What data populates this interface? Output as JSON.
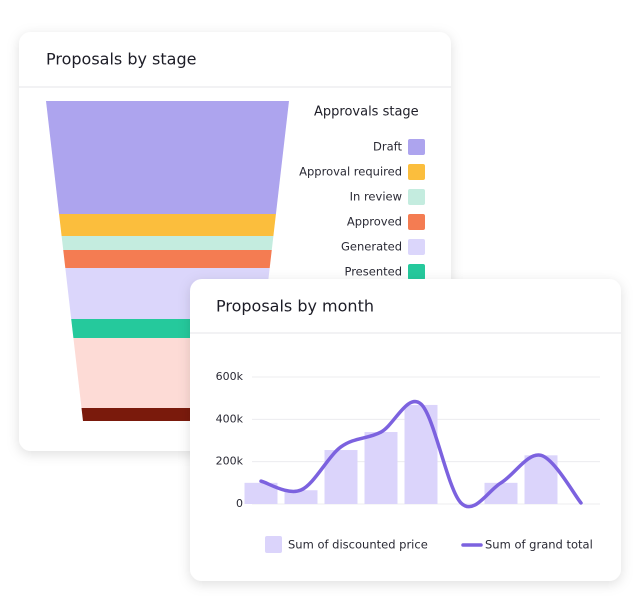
{
  "chart_data": [
    {
      "type": "funnel",
      "title": "Proposals by stage",
      "legend_title": "Approvals stage",
      "categories": [
        "Draft",
        "Approval required",
        "In review",
        "Approved",
        "Generated",
        "Presented",
        null,
        null
      ],
      "values": [
        113,
        22,
        14,
        18,
        51,
        19,
        70,
        13
      ],
      "colors": [
        "#ada4ee",
        "#fbbe3d",
        "#c4ecdf",
        "#f47c52",
        "#dbd6fb",
        "#25c99c",
        "#fddbd6",
        "#7a1a0c"
      ]
    },
    {
      "type": "combo",
      "title": "Proposals by month",
      "categories": [
        null,
        null,
        null,
        null,
        null,
        null,
        null,
        null,
        null
      ],
      "ylim": [
        0,
        600000
      ],
      "yticks": [
        0,
        {
          "value": 200000,
          "label": "200k"
        },
        {
          "value": 400000,
          "label": "400k"
        },
        {
          "value": 600000,
          "label": "600k"
        }
      ],
      "grid": true,
      "series": [
        {
          "name": "Sum of discounted price",
          "kind": "bar",
          "color": "#dbd4fb",
          "values": [
            100000,
            65000,
            255000,
            340000,
            468000,
            0,
            100000,
            230000,
            0
          ]
        },
        {
          "name": "Sum of grand total",
          "kind": "line",
          "color": "#7c62df",
          "values": [
            108000,
            66000,
            270000,
            340000,
            472000,
            5000,
            100000,
            230000,
            5000
          ]
        }
      ]
    }
  ]
}
